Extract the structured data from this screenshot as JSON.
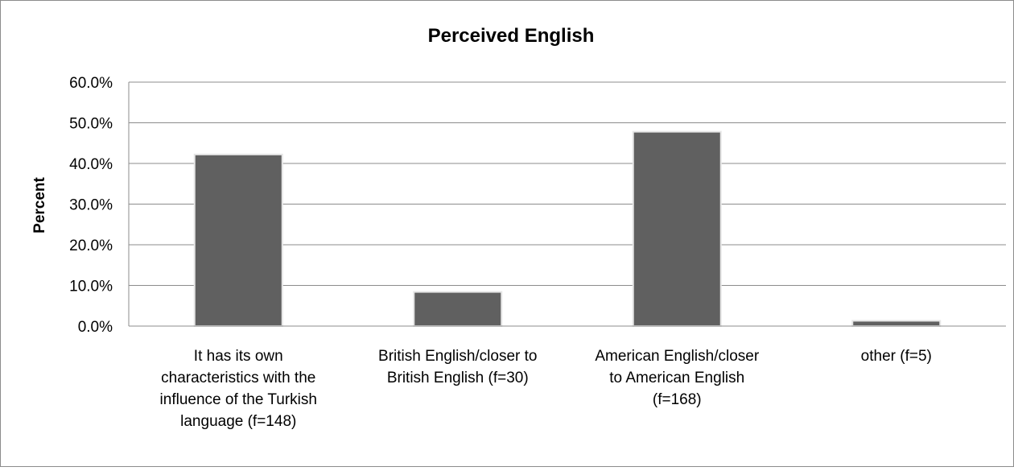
{
  "chart_data": {
    "type": "bar",
    "title": "Perceived English",
    "xlabel": "",
    "ylabel": "Percent",
    "ylim": [
      0,
      60
    ],
    "yticks": [
      "0.0%",
      "10.0%",
      "20.0%",
      "30.0%",
      "40.0%",
      "50.0%",
      "60.0%"
    ],
    "categories": [
      [
        "It has its own",
        "characteristics with the",
        "influence of the Turkish",
        "language (f=148)"
      ],
      [
        "British English/closer to",
        "British English (f=30)"
      ],
      [
        "American English/closer",
        "to American English",
        "(f=168)"
      ],
      [
        "other (f=5)"
      ]
    ],
    "values": [
      42.2,
      8.4,
      47.8,
      1.3
    ],
    "bar_color": "#606060",
    "grid": true,
    "legend": "none"
  }
}
